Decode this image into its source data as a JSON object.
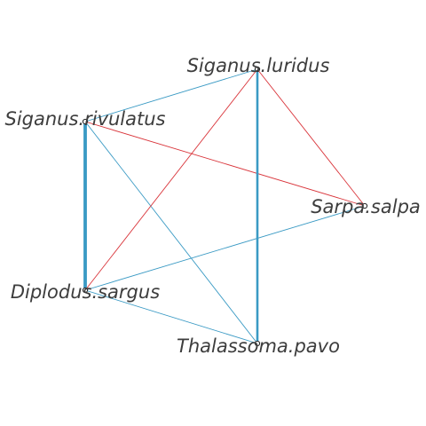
{
  "nodes": [
    {
      "id": "luridus",
      "label": "Siganus.luridus"
    },
    {
      "id": "rivulatus",
      "label": "Siganus.rivulatus"
    },
    {
      "id": "salpa",
      "label": "Sarpa.salpa"
    },
    {
      "id": "sargus",
      "label": "Diplodus.sargus"
    },
    {
      "id": "pavo",
      "label": "Thalassoma.pavo"
    }
  ],
  "edges": [
    {
      "from": "rivulatus",
      "to": "luridus",
      "color": "#3a9ac4",
      "weight": 1
    },
    {
      "from": "rivulatus",
      "to": "sargus",
      "color": "#3a9ac4",
      "weight": 4
    },
    {
      "from": "rivulatus",
      "to": "pavo",
      "color": "#3a9ac4",
      "weight": 1
    },
    {
      "from": "rivulatus",
      "to": "salpa",
      "color": "#d9343a",
      "weight": 1
    },
    {
      "from": "luridus",
      "to": "sargus",
      "color": "#d9343a",
      "weight": 1
    },
    {
      "from": "luridus",
      "to": "salpa",
      "color": "#d9343a",
      "weight": 1
    },
    {
      "from": "luridus",
      "to": "pavo",
      "color": "#3a9ac4",
      "weight": 3
    },
    {
      "from": "sargus",
      "to": "salpa",
      "color": "#3a9ac4",
      "weight": 1
    },
    {
      "from": "sargus",
      "to": "pavo",
      "color": "#3a9ac4",
      "weight": 1
    }
  ]
}
